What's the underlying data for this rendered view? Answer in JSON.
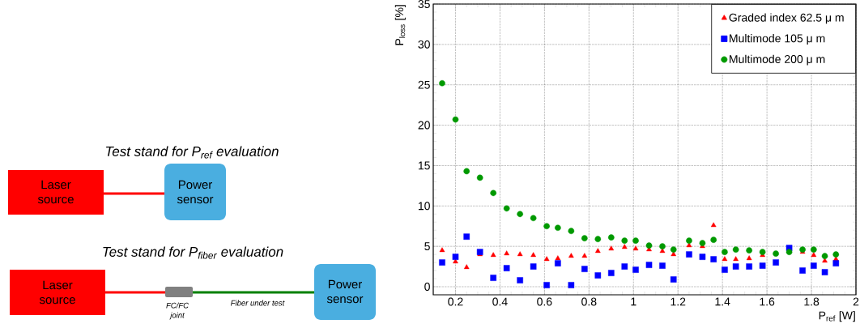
{
  "chart_data": [
    {
      "type": "other",
      "annotations": [
        "Test stand for P$_{ref}$ evaluation",
        "Laser source",
        "Power sensor",
        "Test stand for P$_{fiber}$ evaluation",
        "Laser source",
        "FC/FC joint",
        "Fiber under test",
        "Power sensor"
      ]
    },
    {
      "type": "scatter",
      "xlabel": "P$_{ref}$ [W]",
      "ylabel": "P$_{loss}$ [%]",
      "x": [
        0.14,
        0.2,
        0.25,
        0.31,
        0.37,
        0.43,
        0.49,
        0.55,
        0.61,
        0.66,
        0.72,
        0.78,
        0.84,
        0.9,
        0.96,
        1.01,
        1.07,
        1.13,
        1.18,
        1.25,
        1.31,
        1.36,
        1.41,
        1.46,
        1.52,
        1.58,
        1.64,
        1.7,
        1.76,
        1.81,
        1.86,
        1.91
      ],
      "series": [
        {
          "name": "Graded index 62.5 μ m",
          "color": "#ff0000",
          "marker": "triangle",
          "values": [
            4.5,
            3.1,
            2.4,
            4.0,
            3.9,
            4.1,
            4.0,
            3.9,
            3.4,
            3.5,
            3.8,
            3.8,
            4.4,
            4.7,
            4.9,
            4.7,
            4.6,
            4.4,
            4.0,
            5.1,
            5.0,
            7.6,
            3.4,
            3.4,
            3.5,
            3.9,
            null,
            null,
            4.3,
            3.9,
            3.2,
            3.4
          ]
        },
        {
          "name": "Multimode 105 μ m",
          "color": "#0000ff",
          "marker": "square",
          "values": [
            3.0,
            3.7,
            6.2,
            4.3,
            1.1,
            2.3,
            0.8,
            2.5,
            0.2,
            2.9,
            0.2,
            2.2,
            1.4,
            1.7,
            2.5,
            2.1,
            2.7,
            2.6,
            0.9,
            4.0,
            3.7,
            3.4,
            2.1,
            2.5,
            2.5,
            2.6,
            3.0,
            4.8,
            2.0,
            2.6,
            1.8,
            2.9
          ]
        },
        {
          "name": "Multimode 200 μ m",
          "color": "#009900",
          "marker": "circle",
          "values": [
            25.2,
            20.7,
            14.3,
            13.5,
            11.6,
            9.7,
            9.0,
            8.5,
            7.5,
            7.3,
            6.9,
            6.0,
            5.9,
            6.1,
            5.7,
            5.7,
            5.1,
            5.0,
            4.6,
            5.7,
            5.4,
            5.8,
            4.3,
            4.6,
            4.5,
            4.3,
            4.1,
            4.3,
            4.6,
            4.6,
            3.8,
            4.0
          ]
        }
      ],
      "xlim": [
        0.1,
        2
      ],
      "ylim": [
        -1,
        35
      ],
      "xticks": [
        0.2,
        0.4,
        0.6,
        0.8,
        1,
        1.2,
        1.4,
        1.6,
        1.8,
        2
      ],
      "yticks": [
        0,
        5,
        10,
        15,
        20,
        25,
        30,
        35
      ],
      "grid": true,
      "legend": "top right"
    }
  ]
}
